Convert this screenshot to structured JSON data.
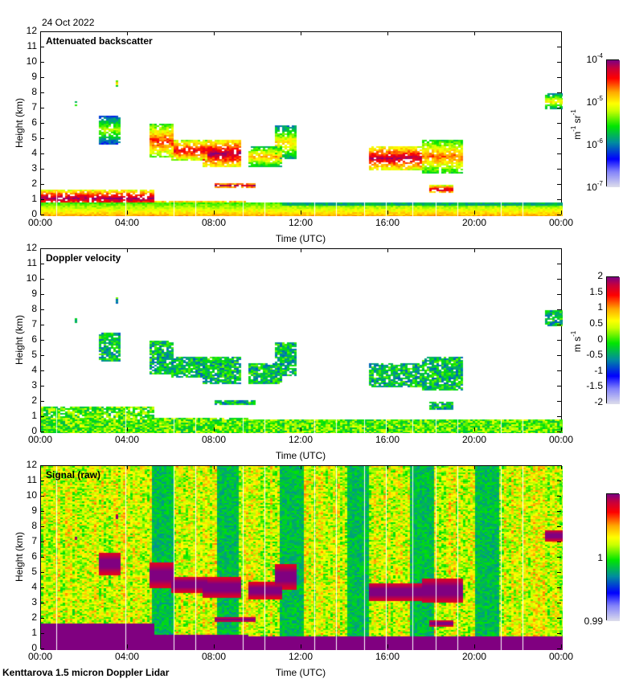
{
  "header": {
    "date": "24 Oct 2022"
  },
  "footer": {
    "instrument": "Kenttarova 1.5 micron Doppler Lidar"
  },
  "chart_data": [
    {
      "type": "heatmap",
      "title": "Attenuated backscatter",
      "xlabel": "Time (UTC)",
      "ylabel": "Height (km)",
      "xticks": [
        "00:00",
        "04:00",
        "08:00",
        "12:00",
        "16:00",
        "20:00",
        "00:00"
      ],
      "xlim_hours": [
        0,
        24
      ],
      "yticks": [
        "0",
        "1",
        "2",
        "3",
        "4",
        "5",
        "6",
        "7",
        "8",
        "9",
        "10",
        "11",
        "12"
      ],
      "ylim": [
        0,
        12
      ],
      "colorbar": {
        "scale": "log",
        "range": [
          1e-07,
          0.0001
        ],
        "tick_base": [
          "10",
          "10",
          "10",
          "10"
        ],
        "tick_exp": [
          "-4",
          "-5",
          "-6",
          "-7"
        ],
        "unit_base": [
          "m",
          "sr"
        ],
        "unit_exp": [
          "-1",
          "-1"
        ]
      },
      "features": [
        {
          "name": "boundary-layer",
          "t": [
            0,
            24
          ],
          "h": [
            0,
            0.9
          ],
          "level": 0.72
        },
        {
          "name": "low-cloud-am",
          "t": [
            0,
            5.2
          ],
          "h": [
            0.6,
            1.7
          ],
          "level": 0.98
        },
        {
          "name": "low-cloud-mid",
          "t": [
            5.2,
            9.5
          ],
          "h": [
            0.6,
            1.0
          ],
          "level": 0.95
        },
        {
          "name": "cloud-0830",
          "t": [
            8.0,
            9.8
          ],
          "h": [
            1.8,
            2.2
          ],
          "level": 0.95
        },
        {
          "name": "mid-cloud-am",
          "t": [
            2.6,
            3.6
          ],
          "h": [
            4.7,
            6.6
          ],
          "level": 0.6
        },
        {
          "name": "mid-cloud-0500",
          "t": [
            4.9,
            6.0
          ],
          "h": [
            3.8,
            6.0
          ],
          "level": 0.85
        },
        {
          "name": "mid-cloud-0630",
          "t": [
            6.0,
            7.6
          ],
          "h": [
            3.6,
            5.0
          ],
          "level": 0.9
        },
        {
          "name": "mid-cloud-0800",
          "t": [
            7.4,
            9.2
          ],
          "h": [
            3.2,
            5.0
          ],
          "level": 0.97
        },
        {
          "name": "mid-cloud-1000",
          "t": [
            9.5,
            11.0
          ],
          "h": [
            3.2,
            4.6
          ],
          "level": 0.75
        },
        {
          "name": "mid-cloud-1100",
          "t": [
            10.7,
            11.7
          ],
          "h": [
            3.7,
            5.9
          ],
          "level": 0.7
        },
        {
          "name": "cloud-1600",
          "t": [
            15.1,
            17.5
          ],
          "h": [
            3.0,
            4.6
          ],
          "level": 0.95
        },
        {
          "name": "cloud-1800",
          "t": [
            17.5,
            19.4
          ],
          "h": [
            2.8,
            5.0
          ],
          "level": 0.8
        },
        {
          "name": "cloud-1830",
          "t": [
            17.8,
            18.9
          ],
          "h": [
            1.5,
            2.0
          ],
          "level": 0.97
        },
        {
          "name": "isolated-0130",
          "t": [
            1.5,
            1.6
          ],
          "h": [
            7.2,
            7.5
          ],
          "level": 0.7
        },
        {
          "name": "isolated-0330",
          "t": [
            3.4,
            3.55
          ],
          "h": [
            8.5,
            8.9
          ],
          "level": 0.75
        },
        {
          "name": "isolated-2345",
          "t": [
            23.2,
            24
          ],
          "h": [
            7.0,
            8.0
          ],
          "level": 0.7
        }
      ]
    },
    {
      "type": "heatmap",
      "title": "Doppler velocity",
      "xlabel": "Time (UTC)",
      "ylabel": "Height (km)",
      "xticks": [
        "00:00",
        "04:00",
        "08:00",
        "12:00",
        "16:00",
        "20:00",
        "00:00"
      ],
      "xlim_hours": [
        0,
        24
      ],
      "yticks": [
        "0",
        "1",
        "2",
        "3",
        "4",
        "5",
        "6",
        "7",
        "8",
        "9",
        "10",
        "11",
        "12"
      ],
      "ylim": [
        0,
        12
      ],
      "colorbar": {
        "scale": "linear",
        "range": [
          -2,
          2
        ],
        "ticks": [
          "2",
          "1.5",
          "1",
          "0.5",
          "0",
          "-0.5",
          "-1",
          "-1.5",
          "-2"
        ],
        "unit_base": [
          "m",
          "s"
        ],
        "unit_exp": [
          "-1"
        ]
      }
    },
    {
      "type": "heatmap",
      "title": "Signal (raw)",
      "xlabel": "Time (UTC)",
      "ylabel": "Height (km)",
      "xticks": [
        "00:00",
        "04:00",
        "08:00",
        "12:00",
        "16:00",
        "20:00",
        "00:00"
      ],
      "xlim_hours": [
        0,
        24
      ],
      "yticks": [
        "0",
        "1",
        "2",
        "3",
        "4",
        "5",
        "6",
        "7",
        "8",
        "9",
        "10",
        "11",
        "12"
      ],
      "ylim": [
        0,
        12
      ],
      "colorbar": {
        "scale": "linear",
        "range": [
          0.99,
          1.01
        ],
        "ticks": [
          "1",
          "0.99"
        ]
      },
      "low_signal_bands_hours": [
        [
          5.1,
          6.1
        ],
        [
          8.1,
          9.1
        ],
        [
          11.0,
          12.0
        ],
        [
          14.1,
          15.0
        ],
        [
          17.0,
          18.0
        ],
        [
          20.0,
          21.0
        ]
      ]
    }
  ]
}
